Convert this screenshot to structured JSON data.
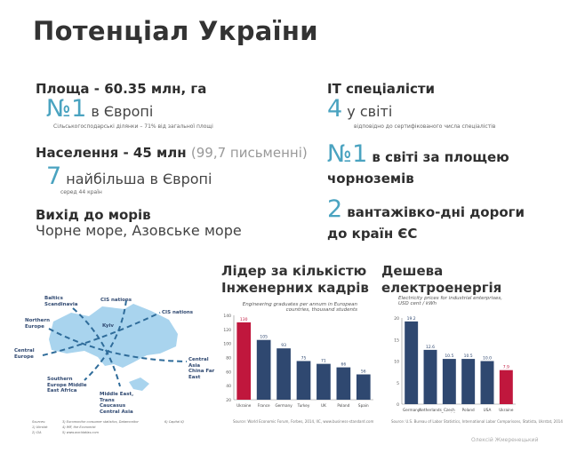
{
  "title": "Потенціал України",
  "left": {
    "area_heading": "Площа - 60.35 млн, га",
    "area_rank": "№1",
    "area_rank_text": "в Європі",
    "area_note": "Сільськогосподарські ділянки – 71% від загальної площі",
    "pop_heading": "Населення - 45 млн",
    "pop_literacy": "(99,7 письменні)",
    "pop_rank": "7",
    "pop_rank_text": "найбільша в Європі",
    "pop_note": "серед 44 країн",
    "sea_heading": "Вихід до морів",
    "sea_text": "Чорне море, Азовське море"
  },
  "right": {
    "it_heading": "IT спеціалісти",
    "it_rank": "4",
    "it_rank_text": "у світі",
    "it_note": "відповідно до сертифікованого числа спеціалістів",
    "soil_rank": "№1",
    "soil_text": "в світі за площею чорноземів",
    "road_rank": "2",
    "road_text": "вантажівко-дні дороги до країн ЄС"
  },
  "map": {
    "labels": [
      "Baltics Scandinavia",
      "CIS nations",
      "CIS nations",
      "Northern Europe",
      "Kyiv",
      "Central Europe",
      "Central Asia China Far East",
      "Southern Europe Middle East Africa",
      "Middle East, Trans Caucasus Central Asia"
    ],
    "sources": [
      "Sources:",
      "1) Ukrstat",
      "2) CIA",
      "3) Euromonitor consumer statistics, Datamonitor",
      "4) IMF, the Economist",
      "5) www.worldatlas.com",
      "6) Capital IQ"
    ],
    "fill": "#a9d4ee",
    "line": "#2f6c9a"
  },
  "chart_data": [
    {
      "type": "bar",
      "heading": "Лідер за кількістю Інженерних кадрів",
      "title": "Engineering graduates per annum in European countries, thousand students",
      "categories": [
        "Ukraine",
        "France",
        "Germany",
        "Turkey",
        "UK",
        "Poland",
        "Spain"
      ],
      "values": [
        130,
        105,
        93,
        75,
        71,
        66,
        56
      ],
      "ylim": [
        20,
        140
      ],
      "yticks": [
        "20",
        "40",
        "60",
        "80",
        "100",
        "120",
        "140"
      ],
      "highlight": "Ukraine",
      "colors": {
        "bar": "#2f4870",
        "highlight": "#c0173d"
      },
      "source": "Source: World Economic Forum, Forbes, 2014, IIC, www.business-standard.com"
    },
    {
      "type": "bar",
      "heading": "Дешева електроенергія",
      "title": "Electricity prices for industrial enterprises, USD cent / kWh",
      "categories": [
        "Germany",
        "Netherlands",
        "Czech Republic",
        "Poland",
        "USA",
        "Ukraine"
      ],
      "values": [
        19.2,
        12.6,
        10.5,
        10.5,
        10.0,
        7.9
      ],
      "labels": [
        "19.2",
        "12.6",
        "10.5",
        "10.5",
        "10.0",
        "7.9"
      ],
      "ylim": [
        0,
        20
      ],
      "yticks": [
        "0",
        "5",
        "10",
        "15",
        "20"
      ],
      "highlight": "Ukraine",
      "colors": {
        "bar": "#2f4870",
        "highlight": "#c0173d"
      },
      "source": "Source: U.S. Bureau of Labor Statistics, International Labor Comparisons, Statista, Ukrstat, 2014"
    }
  ],
  "author": "Олексій Жмеренецький"
}
